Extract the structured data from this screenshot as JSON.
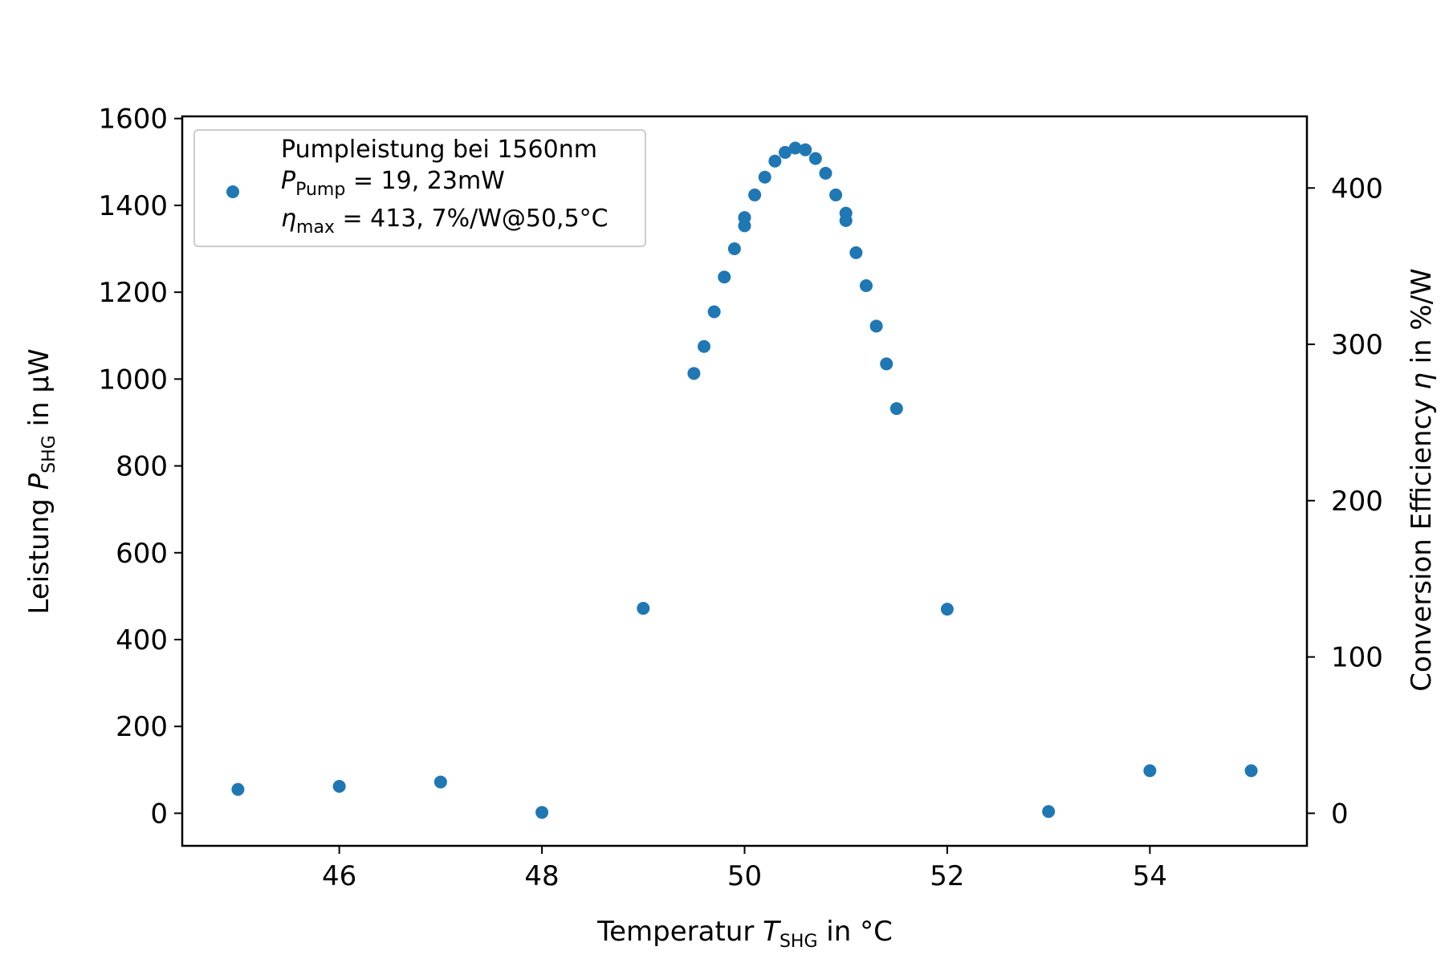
{
  "chart_data": {
    "type": "scatter",
    "xlabel": {
      "prefix": "Temperatur ",
      "var": "T",
      "sub": "SHG",
      "suffix": " in °C"
    },
    "ylabel": {
      "prefix": "Leistung ",
      "var": "P",
      "sub": "SHG",
      "suffix": " in µW"
    },
    "y2label": {
      "prefix": "Conversion Efficiency ",
      "var": "η",
      "suffix": " in %/W"
    },
    "xlim": [
      44.45,
      55.55
    ],
    "ylim": [
      -75,
      1605
    ],
    "y2_factor": 3.6,
    "xticks": [
      46,
      48,
      50,
      52,
      54
    ],
    "yticks": [
      0,
      200,
      400,
      600,
      800,
      1000,
      1200,
      1400,
      1600
    ],
    "y2ticks": [
      0,
      100,
      200,
      300,
      400
    ],
    "marker_color": "#1f77b4",
    "legend": {
      "position": "upper-left",
      "line1": "Pumpleistung bei 1560nm",
      "line2": {
        "var": "P",
        "sub": "Pump",
        "text": " = 19, 23mW"
      },
      "line3": {
        "var": "η",
        "sub": "max",
        "text": " = 413, 7%/W@50,5°C"
      }
    },
    "series": [
      {
        "x": [
          45,
          46,
          47,
          48,
          49,
          49.5,
          49.6,
          49.7,
          49.8,
          49.9,
          50,
          50,
          50.1,
          50.2,
          50.3,
          50.4,
          50.5,
          50.6,
          50.7,
          50.8,
          50.9,
          51,
          51,
          51.1,
          51.2,
          51.3,
          51.4,
          51.5,
          52,
          53,
          54,
          55
        ],
        "y": [
          55,
          62,
          72,
          2,
          472,
          1013,
          1075,
          1155,
          1235,
          1300,
          1353,
          1372,
          1424,
          1465,
          1502,
          1522,
          1532,
          1528,
          1508,
          1474,
          1424,
          1382,
          1365,
          1291,
          1215,
          1122,
          1035,
          932,
          470,
          4,
          98,
          98
        ]
      }
    ]
  }
}
